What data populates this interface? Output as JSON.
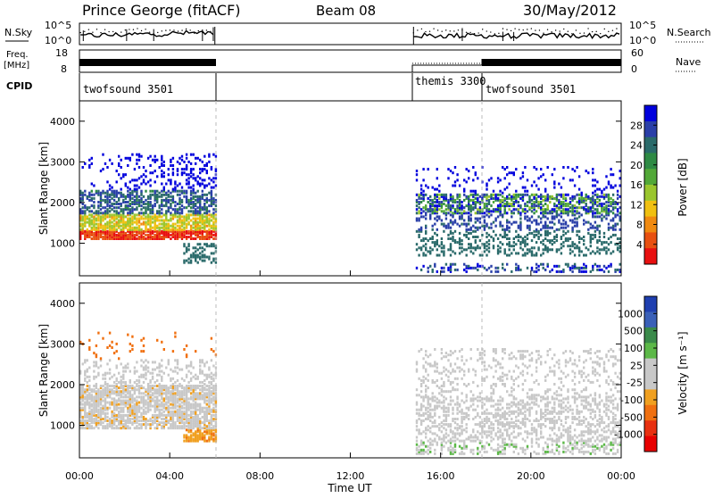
{
  "header": {
    "station": "Prince George (fitACF)",
    "beam": "Beam 08",
    "date": "30/May/2012"
  },
  "panels": {
    "nsky_label": "N.Sky",
    "nsky_ticks": [
      "10^5",
      "10^0"
    ],
    "nsearch_label": "N.Search",
    "nsearch_ticks": [
      "10^5",
      "10^0"
    ],
    "freq_label_1": "Freq.",
    "freq_label_2": "[MHz]",
    "freq_ticks": [
      "18",
      "8"
    ],
    "nave_label": "Nave",
    "nave_ticks": [
      "60",
      "0"
    ],
    "cpid_label": "CPID",
    "cpid_segments": [
      {
        "name": "twofsound 3501"
      },
      {
        "name": "themis 3300"
      },
      {
        "name": "twofsound 3501"
      }
    ]
  },
  "chart_data": [
    {
      "type": "heatmap",
      "title": "",
      "xlabel": "",
      "ylabel": "Slant Range [km]",
      "xlim_hours": [
        0,
        24
      ],
      "ylim": [
        200,
        4500
      ],
      "yticks": [
        "4000",
        "3000",
        "2000",
        "1000"
      ],
      "colorbar_label": "Power [dB]",
      "colorbar_ticks": [
        "28",
        "24",
        "20",
        "16",
        "12",
        "8",
        "4"
      ],
      "colorbar_colors": [
        "#0000dd",
        "#2a3fa8",
        "#2a6a6a",
        "#2e8a44",
        "#52a838",
        "#9ac62e",
        "#f0c010",
        "#f08a10",
        "#e85010",
        "#e81010"
      ]
    },
    {
      "type": "heatmap",
      "title": "",
      "xlabel": "Time UT",
      "ylabel": "Slant Range [km]",
      "xlim_hours": [
        0,
        24
      ],
      "ylim": [
        200,
        4500
      ],
      "yticks": [
        "4000",
        "3000",
        "2000",
        "1000"
      ],
      "xticks": [
        "00:00",
        "04:00",
        "08:00",
        "12:00",
        "16:00",
        "20:00",
        "00:00"
      ],
      "colorbar_label": "Velocity [m s⁻¹]",
      "colorbar_ticks": [
        "1000",
        "500",
        "100",
        "25",
        "-25",
        "-100",
        "-500",
        "-1000"
      ],
      "colorbar_colors": [
        "#1f3fb0",
        "#3a60b8",
        "#3a8a4a",
        "#5cb848",
        "#c8c8c8",
        "#c8c8c8",
        "#f0a020",
        "#f07010",
        "#e83010",
        "#e80000"
      ]
    }
  ]
}
